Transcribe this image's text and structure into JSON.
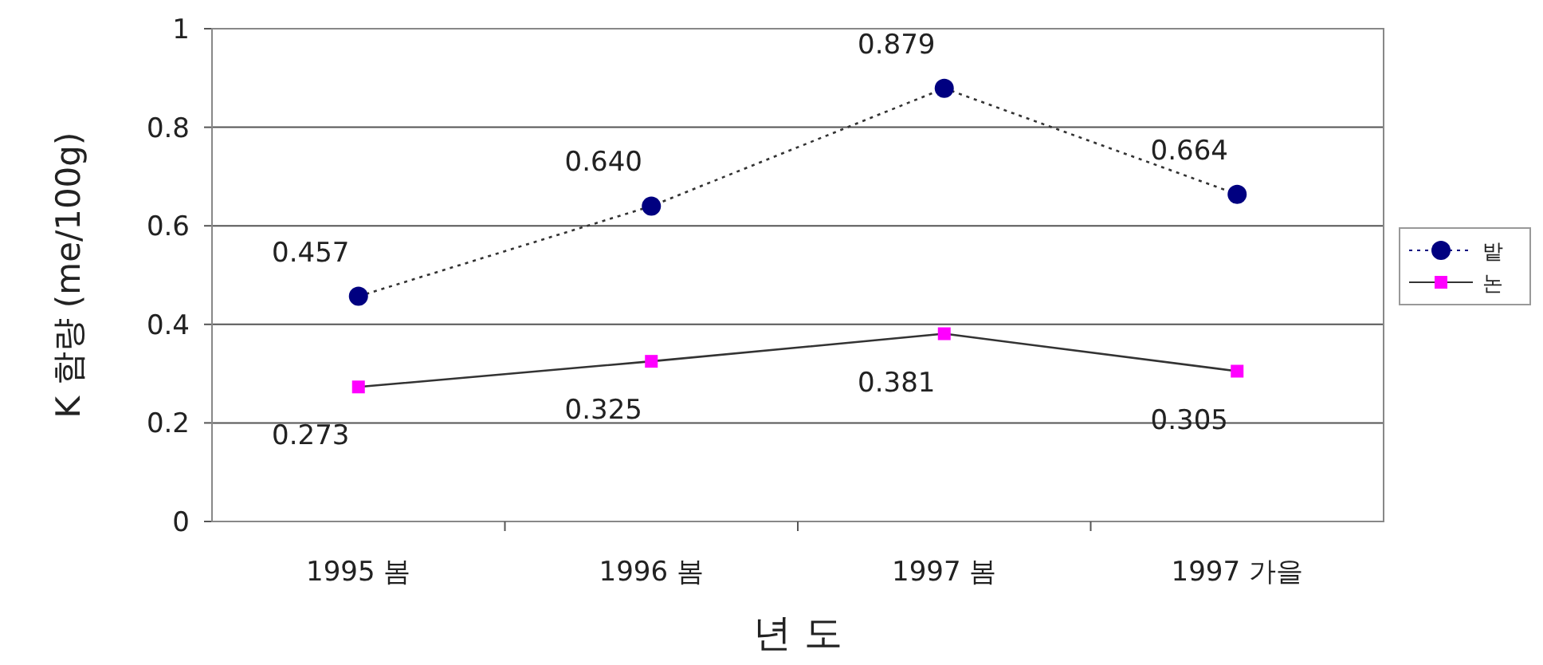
{
  "chart_data": {
    "type": "line",
    "xlabel": "년 도",
    "ylabel": "K 함량 (me/100g)",
    "categories": [
      "1995 봄",
      "1996 봄",
      "1997 봄",
      "1997 가을"
    ],
    "series": [
      {
        "name": "밭",
        "color": "#000080",
        "values": [
          0.457,
          0.64,
          0.879,
          0.664
        ],
        "value_labels": [
          "0.457",
          "0.640",
          "0.879",
          "0.664"
        ],
        "marker": "circle",
        "line_style": "dotted"
      },
      {
        "name": "논",
        "color": "#ff00ff",
        "values": [
          0.273,
          0.325,
          0.381,
          0.305
        ],
        "value_labels": [
          "0.273",
          "0.325",
          "0.381",
          "0.305"
        ],
        "marker": "square",
        "line_style": "solid"
      }
    ],
    "ylim": [
      0,
      1
    ],
    "yticks": [
      0,
      0.2,
      0.4,
      0.6,
      0.8,
      1
    ],
    "grid": "y",
    "legend": "right"
  }
}
